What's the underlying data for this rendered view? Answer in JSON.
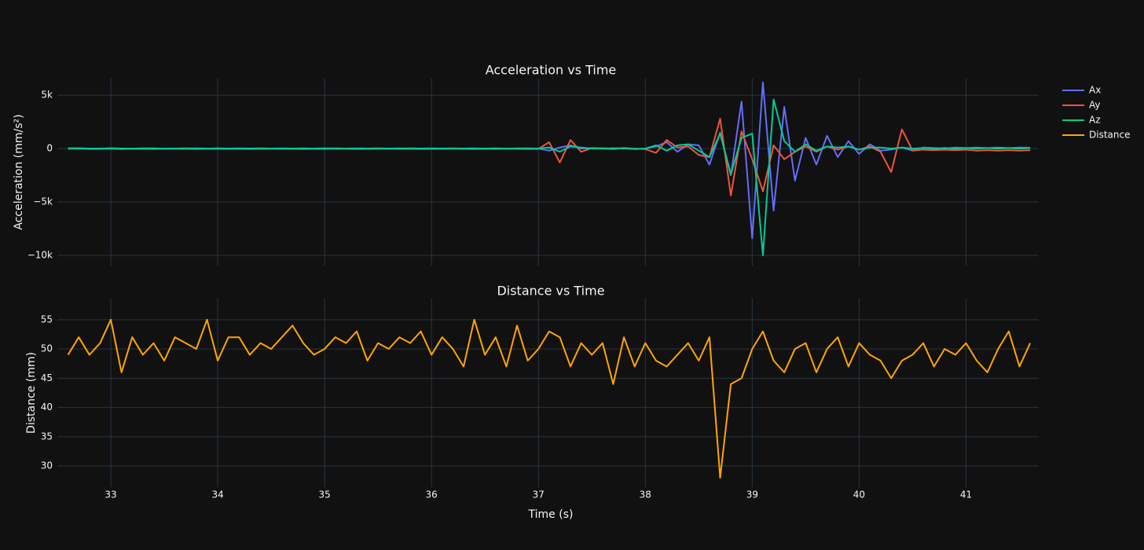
{
  "chart_data": [
    {
      "type": "line",
      "title": "Acceleration vs Time",
      "y_label": "Acceleration (mm/s²)",
      "x": [
        32.6,
        32.7,
        32.8,
        32.9,
        33.0,
        33.1,
        33.2,
        33.3,
        33.4,
        33.5,
        33.6,
        33.7,
        33.8,
        33.9,
        34.0,
        34.1,
        34.2,
        34.3,
        34.4,
        34.5,
        34.6,
        34.7,
        34.8,
        34.9,
        35.0,
        35.1,
        35.2,
        35.3,
        35.4,
        35.5,
        35.6,
        35.7,
        35.8,
        35.9,
        36.0,
        36.1,
        36.2,
        36.3,
        36.4,
        36.5,
        36.6,
        36.7,
        36.8,
        36.9,
        37.0,
        37.1,
        37.2,
        37.3,
        37.4,
        37.5,
        37.6,
        37.7,
        37.8,
        37.9,
        38.0,
        38.1,
        38.2,
        38.3,
        38.4,
        38.5,
        38.6,
        38.7,
        38.8,
        38.9,
        39.0,
        39.1,
        39.2,
        39.3,
        39.4,
        39.5,
        39.6,
        39.7,
        39.8,
        39.9,
        40.0,
        40.1,
        40.2,
        40.3,
        40.4,
        40.5,
        40.6,
        40.7,
        40.8,
        40.9,
        41.0,
        41.1,
        41.2,
        41.3,
        41.4,
        41.5,
        41.6
      ],
      "series": [
        {
          "name": "Ax",
          "color": "#636efa",
          "values": [
            30,
            20,
            10,
            0,
            20,
            10,
            0,
            10,
            20,
            0,
            10,
            0,
            20,
            10,
            0,
            10,
            20,
            10,
            0,
            10,
            20,
            10,
            0,
            10,
            20,
            0,
            10,
            20,
            10,
            0,
            10,
            20,
            0,
            10,
            20,
            10,
            0,
            10,
            20,
            0,
            10,
            0,
            20,
            10,
            0,
            -200,
            100,
            300,
            0,
            50,
            30,
            0,
            50,
            -50,
            0,
            200,
            600,
            -300,
            400,
            300,
            -1500,
            1500,
            -2500,
            4400,
            -8400,
            6200,
            -5800,
            3900,
            -3000,
            1000,
            -1500,
            1200,
            -800,
            700,
            -500,
            400,
            -200,
            -100,
            100,
            -200,
            100,
            50,
            0,
            100,
            50,
            100,
            50,
            100,
            50,
            100,
            80
          ]
        },
        {
          "name": "Ay",
          "color": "#ef553b",
          "values": [
            -20,
            0,
            -40,
            -30,
            -10,
            -50,
            -20,
            -30,
            -40,
            -10,
            -20,
            -30,
            -40,
            -20,
            -10,
            -30,
            -20,
            -40,
            -30,
            -20,
            -10,
            -30,
            -40,
            -20,
            -30,
            -10,
            -20,
            -40,
            -30,
            -20,
            -10,
            -30,
            -20,
            -40,
            -30,
            -20,
            -10,
            -30,
            -40,
            -20,
            -30,
            -10,
            -20,
            -40,
            -30,
            600,
            -1300,
            800,
            -300,
            50,
            0,
            -50,
            50,
            0,
            -50,
            -400,
            800,
            100,
            200,
            -600,
            -800,
            2800,
            -4400,
            1600,
            -1000,
            -4000,
            300,
            -1000,
            -300,
            200,
            -300,
            200,
            -100,
            200,
            -100,
            200,
            -300,
            -2200,
            1800,
            -200,
            -100,
            -150,
            -100,
            -150,
            -100,
            -200,
            -150,
            -200,
            -150,
            -200,
            -150
          ]
        },
        {
          "name": "Az",
          "color": "#00cc96",
          "values": [
            10,
            20,
            0,
            10,
            20,
            10,
            0,
            20,
            10,
            0,
            10,
            20,
            10,
            0,
            20,
            10,
            0,
            10,
            20,
            10,
            0,
            10,
            20,
            0,
            10,
            20,
            10,
            0,
            10,
            20,
            10,
            0,
            20,
            10,
            0,
            10,
            20,
            10,
            0,
            10,
            20,
            0,
            10,
            20,
            10,
            100,
            -300,
            200,
            100,
            0,
            0,
            30,
            0,
            -30,
            0,
            300,
            -200,
            300,
            400,
            -200,
            -800,
            1400,
            -2400,
            1000,
            1400,
            -10000,
            4600,
            700,
            -300,
            400,
            -200,
            200,
            100,
            200,
            -100,
            100,
            100,
            0,
            100,
            0,
            50,
            0,
            50,
            0,
            50,
            0,
            50,
            0,
            50,
            0,
            50
          ]
        }
      ],
      "xlim": [
        32.5,
        41.68
      ],
      "ylim": [
        -10950,
        6550
      ],
      "yticks": [
        {
          "value": -10000,
          "label": "−10k"
        },
        {
          "value": -5000,
          "label": "−5k"
        },
        0,
        {
          "value": 5000,
          "label": "5k"
        }
      ],
      "grid": true
    },
    {
      "type": "line",
      "title": "Distance vs Time",
      "x_label": "Time (s)",
      "y_label": "Distance (mm)",
      "x": [
        32.6,
        32.7,
        32.8,
        32.9,
        33.0,
        33.1,
        33.2,
        33.3,
        33.4,
        33.5,
        33.6,
        33.7,
        33.8,
        33.9,
        34.0,
        34.1,
        34.2,
        34.3,
        34.4,
        34.5,
        34.6,
        34.7,
        34.8,
        34.9,
        35.0,
        35.1,
        35.2,
        35.3,
        35.4,
        35.5,
        35.6,
        35.7,
        35.8,
        35.9,
        36.0,
        36.1,
        36.2,
        36.3,
        36.4,
        36.5,
        36.6,
        36.7,
        36.8,
        36.9,
        37.0,
        37.1,
        37.2,
        37.3,
        37.4,
        37.5,
        37.6,
        37.7,
        37.8,
        37.9,
        38.0,
        38.1,
        38.2,
        38.3,
        38.4,
        38.5,
        38.6,
        38.7,
        38.8,
        38.9,
        39.0,
        39.1,
        39.2,
        39.3,
        39.4,
        39.5,
        39.6,
        39.7,
        39.8,
        39.9,
        40.0,
        40.1,
        40.2,
        40.3,
        40.4,
        40.5,
        40.6,
        40.7,
        40.8,
        40.9,
        41.0,
        41.1,
        41.2,
        41.3,
        41.4,
        41.5,
        41.6
      ],
      "series": [
        {
          "name": "Distance",
          "color": "#ffa500",
          "values": [
            49,
            52,
            49,
            51,
            55,
            46,
            52,
            49,
            51,
            48,
            52,
            51,
            50,
            55,
            48,
            52,
            52,
            49,
            51,
            50,
            52,
            54,
            51,
            49,
            50,
            52,
            51,
            53,
            48,
            51,
            50,
            52,
            51,
            53,
            49,
            52,
            50,
            47,
            55,
            49,
            52,
            47,
            54,
            48,
            50,
            53,
            52,
            47,
            51,
            49,
            51,
            44,
            52,
            47,
            51,
            48,
            47,
            49,
            51,
            48,
            52,
            28,
            44,
            45,
            50,
            53,
            48,
            46,
            50,
            51,
            46,
            50,
            52,
            47,
            51,
            49,
            48,
            45,
            48,
            49,
            51,
            47,
            50,
            49,
            51,
            48,
            46,
            50,
            53,
            47,
            51
          ]
        }
      ],
      "xlim": [
        32.5,
        41.68
      ],
      "ylim": [
        26.4,
        58.6
      ],
      "xticks": [
        33,
        34,
        35,
        36,
        37,
        38,
        39,
        40,
        41
      ],
      "yticks": [
        30,
        35,
        40,
        45,
        50,
        55
      ],
      "grid": true
    }
  ]
}
